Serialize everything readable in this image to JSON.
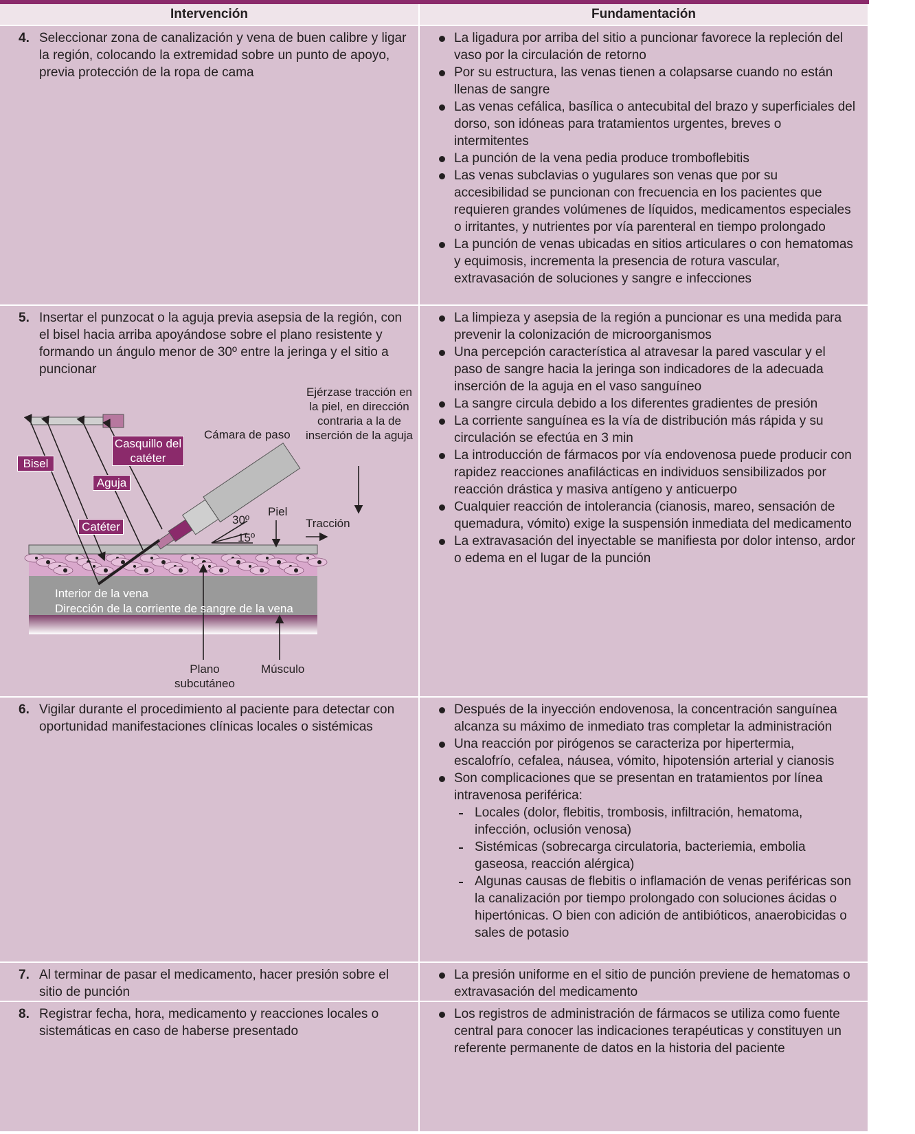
{
  "table": {
    "headers": [
      "Intervención",
      "Fundamentación"
    ],
    "rows": [
      {
        "number": "4.",
        "intervention": "Seleccionar zona de canalización y vena de buen calibre y ligar la región, colocando la extremidad sobre un punto de apoyo, previa protección de la ropa de cama",
        "rationale": [
          "La ligadura por arriba del sitio a puncionar favorece la repleción del vaso por la circulación de retorno",
          "Por su estructura, las venas tienen a colapsarse cuando no están llenas de sangre",
          "Las venas cefálica, basílica o antecubital del brazo y superficiales del dorso, son idóneas para tratamientos urgentes, breves o intermitentes",
          "La punción de la vena pedia produce tromboflebitis",
          "Las venas subclavias o yugulares son venas que por su accesibilidad se puncionan con frecuencia en los pacientes que requieren grandes volúmenes de líquidos, medicamentos especiales o irritantes, y nutrientes por vía parenteral en tiempo prolongado",
          "La punción de venas ubicadas en sitios articulares o con hematomas y equimosis, incrementa la presencia de rotura vascular, extravasación de soluciones y sangre e infecciones"
        ]
      },
      {
        "number": "5.",
        "intervention": "Insertar el punzocat o la aguja previa asepsia de la región, con el bisel hacia arriba apoyándose sobre el plano resistente y formando un ángulo menor de 30º entre la jeringa y el sitio a puncionar",
        "rationale": [
          "La limpieza y asepsia de la región a puncionar es una medida para prevenir la colonización de microorganismos",
          "Una percepción característica al atravesar la pared vascular y el paso de sangre hacia la jeringa son indicadores de la adecuada inserción de la aguja en el vaso sanguíneo",
          "La sangre circula debido a los diferentes gradientes de presión",
          "La corriente sanguínea es la vía de distribución más rápida y su circulación se efectúa en 3 min",
          "La introducción de fármacos por vía endovenosa puede producir con rapidez reacciones anafilácticas en individuos sensibilizados por reacción drástica y masiva antígeno y anticuerpo",
          "Cualquier reacción de intolerancia (cianosis, mareo, sensación de quemadura, vómito) exige la suspensión inmediata del medicamento",
          "La extravasación del inyectable se manifiesta por dolor intenso, ardor o edema en el lugar de la punción"
        ]
      },
      {
        "number": "6.",
        "intervention": "Vigilar durante el procedimiento al paciente para detectar con oportunidad manifestaciones clínicas locales o sistémicas",
        "rationale": [
          "Después de la inyección endovenosa, la concentración sanguínea alcanza su máximo de inmediato tras completar la administración",
          "Una reacción por pirógenos se caracteriza por hipertermia, escalofrío, cefalea, náusea, vómito, hipotensión arterial y cianosis",
          {
            "text": "Son complicaciones que se presentan en tratamientos por línea intravenosa periférica:",
            "subitems": [
              "Locales (dolor, flebitis, trombosis, infiltración, hematoma, infección, oclusión venosa)",
              "Sistémicas (sobrecarga circulatoria, bacteriemia, embolia gaseosa, reacción alérgica)",
              "Algunas causas de flebitis o inflamación de venas periféricas son la canalización por tiempo prolongado con soluciones ácidas o hipertónicas. O bien con adición de antibióticos, anaerobicidas o sales de potasio"
            ]
          }
        ]
      },
      {
        "number": "7.",
        "intervention": "Al terminar de pasar el medicamento, hacer presión sobre el sitio de punción",
        "rationale": [
          "La presión uniforme en el sitio de punción previene de hematomas o extravasación del medicamento"
        ]
      },
      {
        "number": "8.",
        "intervention": "Registrar fecha, hora, medicamento y reacciones locales o sistemáticas en caso de haberse presentado",
        "rationale": [
          "Los registros de administración de fármacos se utiliza como fuente central para conocer las indicaciones terapéuticas y constituyen un referente permanente de datos en la historia del paciente"
        ]
      }
    ]
  },
  "figure": {
    "traction_note": "Ejérzase tracción en la piel, en dirección contraria a la de inserción de la aguja",
    "chamber": "Cámara de paso",
    "hub": "Casquillo del catéter",
    "bevel": "Bisel",
    "needle": "Aguja",
    "catheter": "Catéter",
    "skin": "Piel",
    "angle_30": "30º",
    "angle_15": "15º",
    "traction": "Tracción",
    "vein_interior": "Interior de la vena",
    "blood_direction": "Dirección de la corriente de sangre de la vena",
    "subcutaneous": "Plano subcutáneo",
    "muscle": "Músculo"
  }
}
